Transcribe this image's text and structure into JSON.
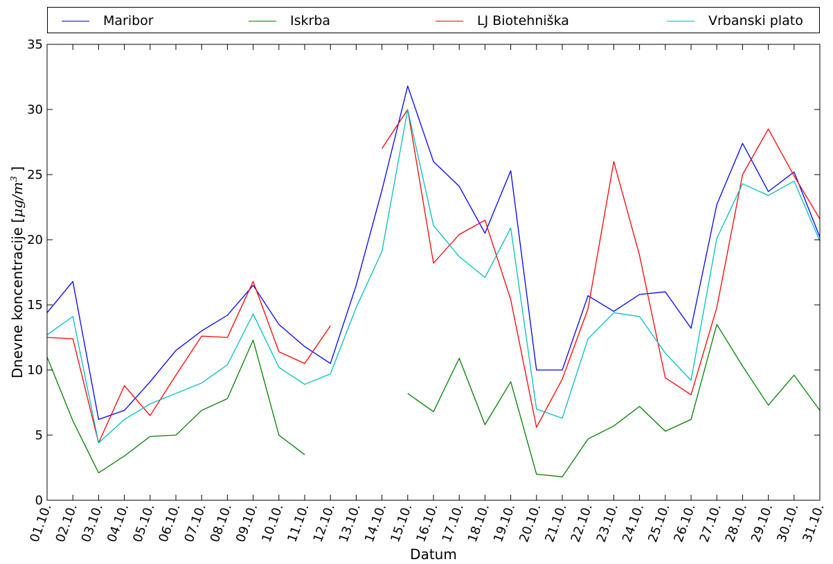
{
  "chart_data": {
    "type": "line",
    "xlabel": "Datum",
    "ylabel": {
      "text": "Dnevne koncentracije [",
      "unit_mu": "μg/m",
      "unit_exp": "3",
      "close": " ]"
    },
    "ylim": [
      0,
      35
    ],
    "yticks": [
      "0",
      "5",
      "10",
      "15",
      "20",
      "25",
      "30",
      "35"
    ],
    "grid": false,
    "legend_placement": "top, above plot",
    "categories": [
      "01.10.",
      "02.10.",
      "03.10.",
      "04.10.",
      "05.10.",
      "06.10.",
      "07.10.",
      "08.10.",
      "09.10.",
      "10.10.",
      "11.10.",
      "12.10.",
      "13.10.",
      "14.10.",
      "15.10.",
      "16.10.",
      "17.10.",
      "18.10.",
      "19.10.",
      "20.10.",
      "21.10.",
      "22.10.",
      "23.10.",
      "24.10.",
      "25.10.",
      "26.10.",
      "27.10.",
      "28.10.",
      "29.10.",
      "30.10.",
      "31.10."
    ],
    "series": [
      {
        "name": "Maribor",
        "color": "#0000ff",
        "values": [
          14.4,
          16.8,
          6.2,
          6.9,
          9.1,
          11.5,
          13.0,
          14.2,
          16.5,
          13.5,
          11.8,
          10.5,
          16.5,
          23.8,
          31.8,
          26.0,
          24.1,
          20.5,
          25.3,
          10.0,
          10.0,
          15.7,
          14.5,
          15.8,
          16.0,
          13.2,
          22.7,
          27.4,
          23.7,
          25.2,
          20.2
        ]
      },
      {
        "name": "Iskrba",
        "color": "#008000",
        "values": [
          11.0,
          6.1,
          2.1,
          3.4,
          4.9,
          5.0,
          6.9,
          7.8,
          12.3,
          5.0,
          3.5,
          null,
          null,
          null,
          8.2,
          6.8,
          10.9,
          5.8,
          9.1,
          2.0,
          1.8,
          4.7,
          5.7,
          7.2,
          5.3,
          6.2,
          13.5,
          10.3,
          7.3,
          9.6,
          6.9
        ]
      },
      {
        "name": "LJ Biotehniška",
        "color": "#ff0000",
        "values": [
          12.5,
          12.4,
          4.4,
          8.8,
          6.5,
          9.6,
          12.6,
          12.5,
          16.8,
          11.4,
          10.5,
          13.4,
          null,
          27.0,
          30.0,
          18.2,
          20.4,
          21.5,
          15.4,
          5.6,
          9.3,
          14.7,
          26.0,
          18.8,
          9.4,
          8.1,
          14.8,
          25.0,
          28.5,
          24.9,
          21.6
        ]
      },
      {
        "name": "Vrbanski plato",
        "color": "#00bfbf",
        "values": [
          12.7,
          14.1,
          4.4,
          6.2,
          7.4,
          8.2,
          9.0,
          10.4,
          14.3,
          10.2,
          8.9,
          9.7,
          14.8,
          19.1,
          30.0,
          21.1,
          18.7,
          17.1,
          20.9,
          7.0,
          6.3,
          12.4,
          14.4,
          14.1,
          11.3,
          9.2,
          20.1,
          24.3,
          23.4,
          24.5,
          19.9
        ]
      }
    ]
  }
}
